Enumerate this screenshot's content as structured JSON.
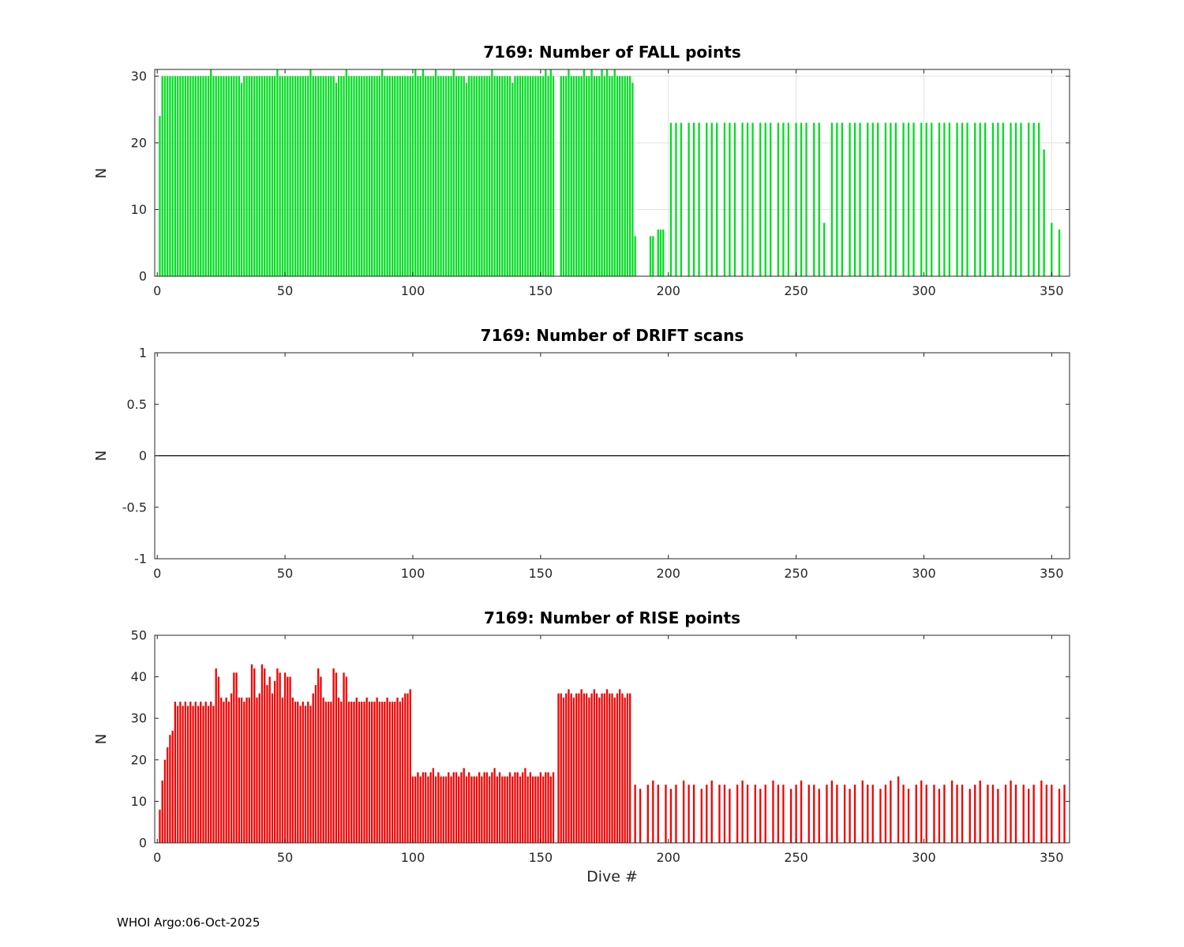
{
  "figure": {
    "footer": "WHOI Argo:06-Oct-2025",
    "background_color": "#ffffff",
    "axes_color": "#262626"
  },
  "chart_data": [
    {
      "type": "bar",
      "title": "7169: Number of FALL points",
      "ylabel": "N",
      "xlabel": "",
      "bar_color": "#00dd22",
      "xlim": [
        -1,
        357
      ],
      "ylim": [
        0,
        31
      ],
      "xticks": [
        0,
        50,
        100,
        150,
        200,
        250,
        300,
        350
      ],
      "yticks": [
        0,
        10,
        20,
        30
      ],
      "grid": true,
      "legend": "none",
      "segments": [
        {
          "x0": 1,
          "values": [
            24
          ]
        },
        {
          "x0": 2,
          "to": 155,
          "value": 30
        },
        {
          "x0": 158,
          "to": 186,
          "value": 30
        },
        {
          "x0": 193,
          "values": [
            6,
            6
          ]
        },
        {
          "x0": 196,
          "values": [
            7,
            7,
            7
          ]
        },
        {
          "x0": 201,
          "to": 345,
          "steps": [
            2,
            2,
            3
          ],
          "value": 23
        }
      ],
      "overrides": {
        "21": 31,
        "47": 31,
        "60": 31,
        "74": 31,
        "88": 31,
        "101": 31,
        "104": 31,
        "109": 31,
        "116": 31,
        "131": 31,
        "152": 31,
        "154": 31,
        "161": 31,
        "167": 31,
        "170": 31,
        "174": 31,
        "176": 31,
        "179": 31,
        "33": 29,
        "70": 29,
        "121": 29,
        "139": 29,
        "186": 29,
        "187": 6,
        "261": 8,
        "347": 19,
        "350": 8,
        "353": 7
      }
    },
    {
      "type": "line",
      "title": "7169: Number of DRIFT scans",
      "ylabel": "N",
      "xlabel": "",
      "line_color": "#000000",
      "constant_value": 0,
      "x_range": [
        1,
        356
      ],
      "xlim": [
        -1,
        357
      ],
      "ylim": [
        -1,
        1
      ],
      "xticks": [
        0,
        50,
        100,
        150,
        200,
        250,
        300,
        350
      ],
      "yticks": [
        -1,
        -0.5,
        0,
        0.5,
        1
      ],
      "grid": false,
      "legend": "none"
    },
    {
      "type": "bar",
      "title": "7169: Number of RISE points",
      "ylabel": "N",
      "xlabel": "Dive #",
      "bar_color": "#f40000",
      "xlim": [
        -1,
        357
      ],
      "ylim": [
        0,
        50
      ],
      "xticks": [
        0,
        50,
        100,
        150,
        200,
        250,
        300,
        350
      ],
      "yticks": [
        0,
        10,
        20,
        30,
        40,
        50
      ],
      "grid": false,
      "legend": "none",
      "segments": [
        {
          "x0": 1,
          "values": [
            8,
            15,
            20,
            23,
            26,
            27
          ]
        },
        {
          "x0": 7,
          "to": 22,
          "cycle": [
            34,
            33,
            34,
            33
          ]
        },
        {
          "x0": 23,
          "values": [
            42,
            40,
            35,
            34,
            35,
            34,
            36,
            41,
            41,
            35,
            35,
            34,
            35,
            35,
            43,
            42,
            35,
            36,
            43,
            42,
            38,
            40,
            36,
            39,
            42,
            41,
            35,
            41,
            40,
            40,
            35,
            34,
            34,
            33,
            34,
            33,
            34,
            33,
            36,
            38,
            42,
            40,
            35,
            34,
            34,
            34,
            42,
            41,
            35,
            34,
            41,
            40,
            34
          ]
        },
        {
          "x0": 76,
          "to": 95,
          "cycle": [
            34,
            34,
            35,
            34
          ]
        },
        {
          "x0": 96,
          "values": [
            35,
            36,
            36,
            37
          ]
        },
        {
          "x0": 100,
          "to": 155,
          "cycle": [
            16,
            16,
            17,
            16,
            17,
            17,
            16,
            17,
            18,
            16,
            17,
            16
          ]
        },
        {
          "x0": 157,
          "to": 185,
          "cycle": [
            36,
            36,
            35,
            36,
            37,
            36,
            35,
            36,
            36,
            37
          ]
        },
        {
          "x0": 187,
          "to": 356,
          "steps": [
            2,
            3,
            2
          ],
          "cycle": [
            14,
            13,
            14,
            15,
            14,
            14,
            13,
            14,
            15,
            14
          ]
        }
      ],
      "overrides": {
        "290": 16
      }
    }
  ]
}
